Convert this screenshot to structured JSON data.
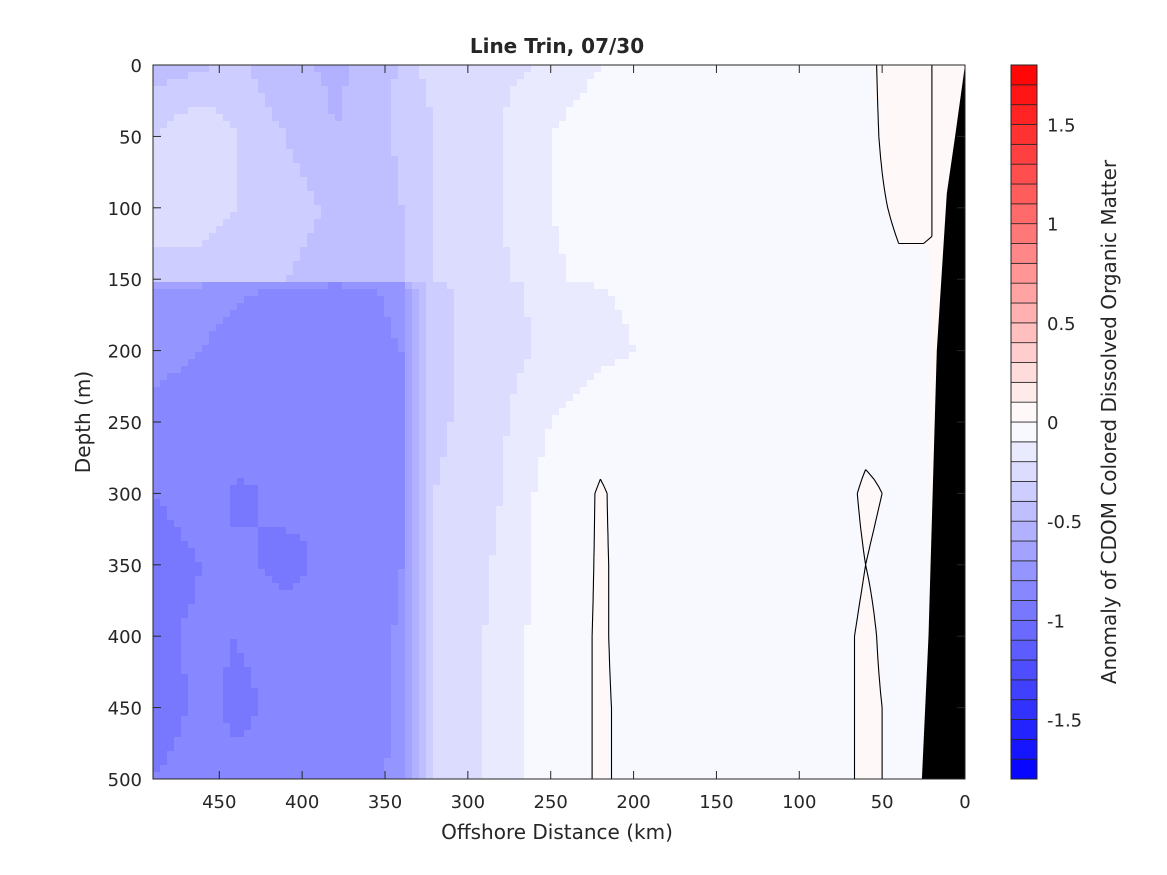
{
  "chart_data": {
    "type": "heatmap",
    "title": "Line Trin, 07/30",
    "xlabel": "Offshore Distance (km)",
    "ylabel": "Depth (m)",
    "colorbar_label": "Anomaly of CDOM Colored Dissolved Organic Matter",
    "xlim": [
      490,
      0
    ],
    "ylim": [
      0,
      500
    ],
    "x_reversed": true,
    "y_reversed": true,
    "xticks": [
      450,
      400,
      350,
      300,
      250,
      200,
      150,
      100,
      50,
      0
    ],
    "yticks": [
      0,
      50,
      100,
      150,
      200,
      250,
      300,
      350,
      400,
      450,
      500
    ],
    "clim": [
      -1.8,
      1.8
    ],
    "colorbar_ticks": [
      1.5,
      1,
      0.5,
      0,
      -0.5,
      -1,
      -1.5
    ],
    "colorbar_tick_labels": [
      "1.5",
      "1",
      "0.5",
      "0",
      "-0.5",
      "-1",
      "-1.5"
    ],
    "colorbar_levels": 36,
    "colormap": {
      "negative": "#0000ff",
      "zero": "#ffffff",
      "positive": "#ff0000"
    },
    "bathymetry_color": "#000000",
    "zero_contour_color": "#000000",
    "bathymetry": [
      [
        0,
        0
      ],
      [
        6,
        50
      ],
      [
        11,
        90
      ],
      [
        17,
        200
      ],
      [
        22,
        400
      ],
      [
        26,
        500
      ]
    ],
    "grid_x": [
      490,
      460,
      440,
      410,
      380,
      360,
      340,
      330,
      320,
      300,
      280,
      260,
      240,
      220,
      200,
      180,
      160,
      140,
      120,
      100,
      80,
      60,
      40,
      20,
      0
    ],
    "grid_depth": [
      0,
      50,
      100,
      150,
      155,
      200,
      250,
      300,
      350,
      400,
      450,
      500
    ],
    "anomaly_profiles": [
      [
        -0.45,
        -0.42,
        -0.38,
        -0.48,
        -0.52,
        -0.48,
        -0.38,
        -0.3,
        -0.28,
        -0.25,
        -0.22,
        -0.2,
        -0.14,
        -0.1,
        -0.06,
        -0.05,
        -0.04,
        -0.05,
        -0.05,
        -0.04,
        -0.04,
        -0.02,
        0.04,
        0.0,
        0.0
      ],
      [
        -0.3,
        -0.2,
        -0.3,
        -0.4,
        -0.5,
        -0.45,
        -0.38,
        -0.33,
        -0.3,
        -0.25,
        -0.2,
        -0.12,
        -0.08,
        -0.05,
        -0.04,
        -0.03,
        -0.04,
        -0.05,
        -0.05,
        -0.05,
        -0.04,
        -0.02,
        0.03,
        0.0,
        0.0
      ],
      [
        -0.28,
        -0.28,
        -0.3,
        -0.35,
        -0.42,
        -0.45,
        -0.4,
        -0.33,
        -0.3,
        -0.25,
        -0.2,
        -0.12,
        -0.08,
        -0.05,
        -0.05,
        -0.04,
        -0.05,
        -0.06,
        -0.06,
        -0.05,
        -0.04,
        -0.02,
        0.01,
        0.0,
        0.0
      ],
      [
        -0.32,
        -0.32,
        -0.35,
        -0.4,
        -0.45,
        -0.48,
        -0.42,
        -0.35,
        -0.3,
        -0.26,
        -0.22,
        -0.16,
        -0.1,
        -0.08,
        -0.07,
        -0.07,
        -0.08,
        -0.08,
        -0.08,
        -0.07,
        -0.05,
        -0.03,
        -0.01,
        0.0,
        0.0
      ],
      [
        -0.7,
        -0.75,
        -0.78,
        -0.82,
        -0.85,
        -0.82,
        -0.75,
        -0.45,
        -0.32,
        -0.28,
        -0.24,
        -0.18,
        -0.12,
        -0.1,
        -0.09,
        -0.08,
        -0.09,
        -0.09,
        -0.09,
        -0.08,
        -0.06,
        -0.04,
        -0.02,
        0.0,
        0.0
      ],
      [
        -0.75,
        -0.8,
        -0.85,
        -0.82,
        -0.88,
        -0.85,
        -0.8,
        -0.5,
        -0.32,
        -0.28,
        -0.25,
        -0.2,
        -0.15,
        -0.12,
        -0.1,
        -0.1,
        -0.1,
        -0.1,
        -0.1,
        -0.09,
        -0.07,
        -0.05,
        -0.02,
        0.0,
        0.0
      ],
      [
        -0.85,
        -0.88,
        -0.82,
        -0.9,
        -0.85,
        -0.88,
        -0.8,
        -0.5,
        -0.32,
        -0.28,
        -0.22,
        -0.12,
        -0.08,
        -0.04,
        -0.05,
        -0.06,
        -0.07,
        -0.08,
        -0.08,
        -0.07,
        -0.04,
        -0.02,
        -0.02,
        0.0,
        0.0
      ],
      [
        -0.9,
        -0.85,
        -0.92,
        -0.88,
        -0.9,
        -0.85,
        -0.8,
        -0.5,
        -0.3,
        -0.26,
        -0.2,
        -0.1,
        -0.05,
        0.01,
        -0.04,
        -0.06,
        -0.07,
        -0.08,
        -0.08,
        -0.06,
        -0.03,
        0.01,
        -0.01,
        0.0,
        0.0
      ],
      [
        -0.95,
        -0.9,
        -0.88,
        -0.92,
        -0.88,
        -0.9,
        -0.8,
        -0.5,
        -0.3,
        -0.25,
        -0.18,
        -0.1,
        -0.04,
        0.01,
        -0.03,
        -0.06,
        -0.07,
        -0.08,
        -0.07,
        -0.05,
        -0.03,
        0.0,
        -0.02,
        0.0,
        0.0
      ],
      [
        -0.92,
        -0.88,
        -0.9,
        -0.86,
        -0.9,
        -0.86,
        -0.78,
        -0.48,
        -0.28,
        -0.24,
        -0.16,
        -0.08,
        -0.03,
        0.01,
        -0.03,
        -0.05,
        -0.06,
        -0.07,
        -0.06,
        -0.05,
        -0.02,
        0.01,
        -0.02,
        0.0,
        0.0
      ],
      [
        -0.95,
        -0.88,
        -0.92,
        -0.88,
        -0.86,
        -0.86,
        -0.78,
        -0.48,
        -0.28,
        -0.24,
        -0.16,
        -0.08,
        -0.03,
        0.01,
        -0.02,
        -0.04,
        -0.05,
        -0.06,
        -0.06,
        -0.04,
        -0.02,
        0.01,
        -0.01,
        0.0,
        0.0
      ],
      [
        -0.9,
        -0.85,
        -0.88,
        -0.85,
        -0.85,
        -0.84,
        -0.76,
        -0.46,
        -0.28,
        -0.24,
        -0.16,
        -0.08,
        -0.03,
        0.01,
        -0.02,
        -0.04,
        -0.05,
        -0.06,
        -0.05,
        -0.04,
        -0.02,
        0.01,
        -0.01,
        0.0,
        0.0
      ]
    ]
  }
}
